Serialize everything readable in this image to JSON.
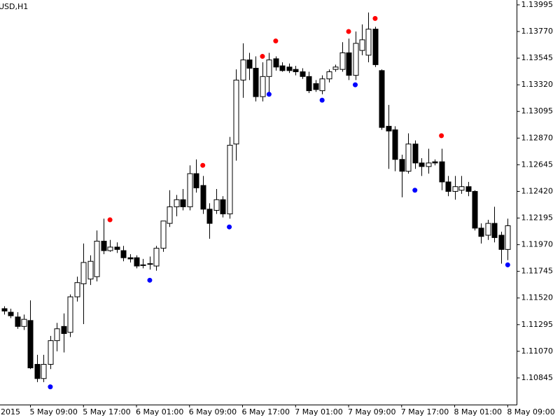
{
  "chart_data": {
    "type": "candlestick",
    "title": "USD,H1",
    "x_label_clipped": "2015",
    "categories": [
      null,
      null,
      null,
      null,
      "5 May 09:00",
      null,
      null,
      null,
      null,
      null,
      null,
      null,
      "5 May 17:00",
      null,
      null,
      null,
      null,
      null,
      null,
      null,
      "6 May 01:00",
      null,
      null,
      null,
      null,
      null,
      null,
      null,
      "6 May 09:00",
      null,
      null,
      null,
      null,
      null,
      null,
      null,
      "6 May 17:00",
      null,
      null,
      null,
      null,
      null,
      null,
      null,
      "7 May 01:00",
      null,
      null,
      null,
      null,
      null,
      null,
      null,
      "7 May 09:00",
      null,
      null,
      null,
      null,
      null,
      null,
      null,
      "7 May 17:00",
      null,
      null,
      null,
      null,
      null,
      null,
      null,
      "8 May 01:00",
      null,
      null,
      null,
      null,
      null,
      null,
      null,
      "8 May 09:00"
    ],
    "open": [
      1.1143,
      1.114,
      1.1136,
      1.1128,
      1.1133,
      1.1096,
      1.1084,
      1.1096,
      1.1116,
      1.1128,
      1.1123,
      1.1153,
      1.1164,
      1.1168,
      1.117,
      1.12,
      1.1192,
      1.1195,
      1.1192,
      1.1186,
      1.1186,
      1.118,
      1.1181,
      1.1179,
      1.1194,
      1.1215,
      1.1229,
      1.1235,
      1.1229,
      1.1257,
      1.1247,
      1.1227,
      1.1226,
      1.1235,
      1.1223,
      1.1282,
      1.1336,
      1.1353,
      1.1346,
      1.1322,
      1.1339,
      1.1354,
      1.1348,
      1.1347,
      1.1345,
      1.1343,
      1.1339,
      1.1333,
      1.1327,
      1.1337,
      1.1345,
      1.1345,
      1.1359,
      1.134,
      1.1361,
      1.1357,
      1.1379,
      1.1344,
      1.1297,
      1.1294,
      1.1269,
      1.1259,
      1.1282,
      1.1266,
      1.1263,
      1.1267,
      1.1267,
      1.125,
      1.1242,
      1.1243,
      1.1246,
      1.1242,
      1.1211,
      1.1205,
      1.1215,
      1.1205,
      1.1193
    ],
    "high": [
      1.1145,
      1.1143,
      1.114,
      1.1138,
      1.115,
      1.1104,
      1.1104,
      1.112,
      1.1131,
      1.1139,
      1.1155,
      1.117,
      1.1198,
      1.1188,
      1.1209,
      1.1219,
      1.1201,
      1.1199,
      1.1196,
      1.1189,
      1.1188,
      1.1185,
      1.1187,
      1.1196,
      1.1217,
      1.1243,
      1.1239,
      1.1244,
      1.1264,
      1.1269,
      1.1255,
      1.1232,
      1.1244,
      1.1238,
      1.1288,
      1.1345,
      1.1367,
      1.1359,
      1.1356,
      1.1351,
      1.1359,
      1.1356,
      1.1351,
      1.135,
      1.1348,
      1.1346,
      1.1343,
      1.1336,
      1.134,
      1.1345,
      1.1349,
      1.1368,
      1.1371,
      1.1377,
      1.1383,
      1.1393,
      1.1381,
      1.1345,
      1.1315,
      1.1297,
      1.1273,
      1.1291,
      1.1285,
      1.127,
      1.1278,
      1.1269,
      1.1278,
      1.1255,
      1.1255,
      1.1255,
      1.125,
      1.1243,
      1.1215,
      1.1218,
      1.1229,
      1.1208,
      1.1219
    ],
    "low": [
      1.1138,
      1.1135,
      1.1126,
      1.1125,
      1.1092,
      1.1081,
      1.1081,
      1.1092,
      1.1107,
      1.1106,
      1.1119,
      1.1149,
      1.113,
      1.1163,
      1.1166,
      1.1189,
      1.1191,
      1.119,
      1.1183,
      1.1182,
      1.1177,
      1.1177,
      1.1176,
      1.1175,
      1.1191,
      1.1212,
      1.1221,
      1.1226,
      1.1226,
      1.1241,
      1.1223,
      1.1202,
      1.1223,
      1.122,
      1.1219,
      1.1268,
      1.1321,
      1.1336,
      1.1318,
      1.1318,
      1.1324,
      1.1344,
      1.1343,
      1.1342,
      1.134,
      1.1337,
      1.1325,
      1.1326,
      1.1324,
      1.1334,
      1.1343,
      1.1343,
      1.1336,
      1.1336,
      1.1357,
      1.1351,
      1.1347,
      1.1294,
      1.1261,
      1.1259,
      1.1237,
      1.1257,
      1.1261,
      1.1255,
      1.1257,
      1.1264,
      1.1243,
      1.1238,
      1.1235,
      1.124,
      1.1238,
      1.1209,
      1.1198,
      1.1201,
      1.1199,
      1.1181,
      1.1184
    ],
    "close": [
      1.1141,
      1.1137,
      1.1128,
      1.1134,
      1.1093,
      1.1084,
      1.1096,
      1.1116,
      1.1126,
      1.1122,
      1.1153,
      1.1165,
      1.1182,
      1.1183,
      1.12,
      1.1192,
      1.1195,
      1.1193,
      1.1186,
      1.1185,
      1.1179,
      1.118,
      1.1181,
      1.1194,
      1.1217,
      1.1229,
      1.1235,
      1.1229,
      1.1257,
      1.1245,
      1.1227,
      1.1215,
      1.1235,
      1.1223,
      1.1281,
      1.1336,
      1.1353,
      1.1346,
      1.1322,
      1.1339,
      1.1353,
      1.1347,
      1.1344,
      1.1344,
      1.1343,
      1.1339,
      1.1327,
      1.1328,
      1.1337,
      1.1343,
      1.1347,
      1.1359,
      1.134,
      1.1367,
      1.137,
      1.1379,
      1.1349,
      1.1296,
      1.1293,
      1.1269,
      1.1259,
      1.1282,
      1.1266,
      1.1263,
      1.1266,
      1.1266,
      1.125,
      1.1242,
      1.1246,
      1.1246,
      1.1242,
      1.1211,
      1.1204,
      1.1215,
      1.1203,
      1.1193,
      1.1213
    ],
    "up_color": "#ffffff",
    "down_color": "#000000",
    "fractals_up": {
      "color": "#ff0000",
      "values": [
        null,
        null,
        null,
        null,
        null,
        null,
        null,
        null,
        null,
        null,
        null,
        null,
        null,
        null,
        null,
        null,
        1.1218,
        null,
        null,
        null,
        null,
        null,
        null,
        null,
        null,
        null,
        null,
        null,
        null,
        null,
        1.1264,
        null,
        null,
        null,
        null,
        null,
        null,
        null,
        null,
        1.1356,
        null,
        1.1369,
        null,
        null,
        null,
        null,
        null,
        null,
        null,
        null,
        null,
        null,
        1.1377,
        null,
        null,
        null,
        1.1388,
        null,
        null,
        null,
        null,
        null,
        null,
        null,
        null,
        null,
        1.1289,
        null,
        null,
        null,
        null,
        null,
        null,
        null,
        null,
        null,
        null
      ]
    },
    "fractals_down": {
      "color": "#0000ff",
      "values": [
        null,
        null,
        null,
        null,
        null,
        null,
        null,
        1.1077,
        null,
        null,
        null,
        null,
        null,
        null,
        null,
        null,
        null,
        null,
        null,
        null,
        null,
        null,
        1.1167,
        null,
        null,
        null,
        null,
        null,
        null,
        null,
        null,
        null,
        null,
        null,
        1.1212,
        null,
        null,
        null,
        null,
        null,
        1.1324,
        null,
        null,
        null,
        null,
        null,
        null,
        null,
        1.1319,
        null,
        null,
        null,
        null,
        1.1332,
        null,
        null,
        null,
        null,
        null,
        null,
        null,
        null,
        1.1243,
        null,
        null,
        null,
        null,
        null,
        null,
        null,
        null,
        null,
        null,
        null,
        null,
        null,
        1.118
      ]
    },
    "ylim": [
      1.1062,
      1.14036
    ],
    "yticks": [
      1.13995,
      {
        "value": 1.1377,
        "label": "1.13770"
      },
      1.13545,
      {
        "value": 1.1332,
        "label": "1.13320"
      },
      1.13095,
      {
        "value": 1.1287,
        "label": "1.12870"
      },
      1.12645,
      {
        "value": 1.1242,
        "label": "1.12420"
      },
      1.12195,
      {
        "value": 1.1197,
        "label": "1.11970"
      },
      1.11745,
      {
        "value": 1.1152,
        "label": "1.11520"
      },
      1.11295,
      {
        "value": 1.1107,
        "label": "1.11070"
      },
      1.10845
    ]
  }
}
